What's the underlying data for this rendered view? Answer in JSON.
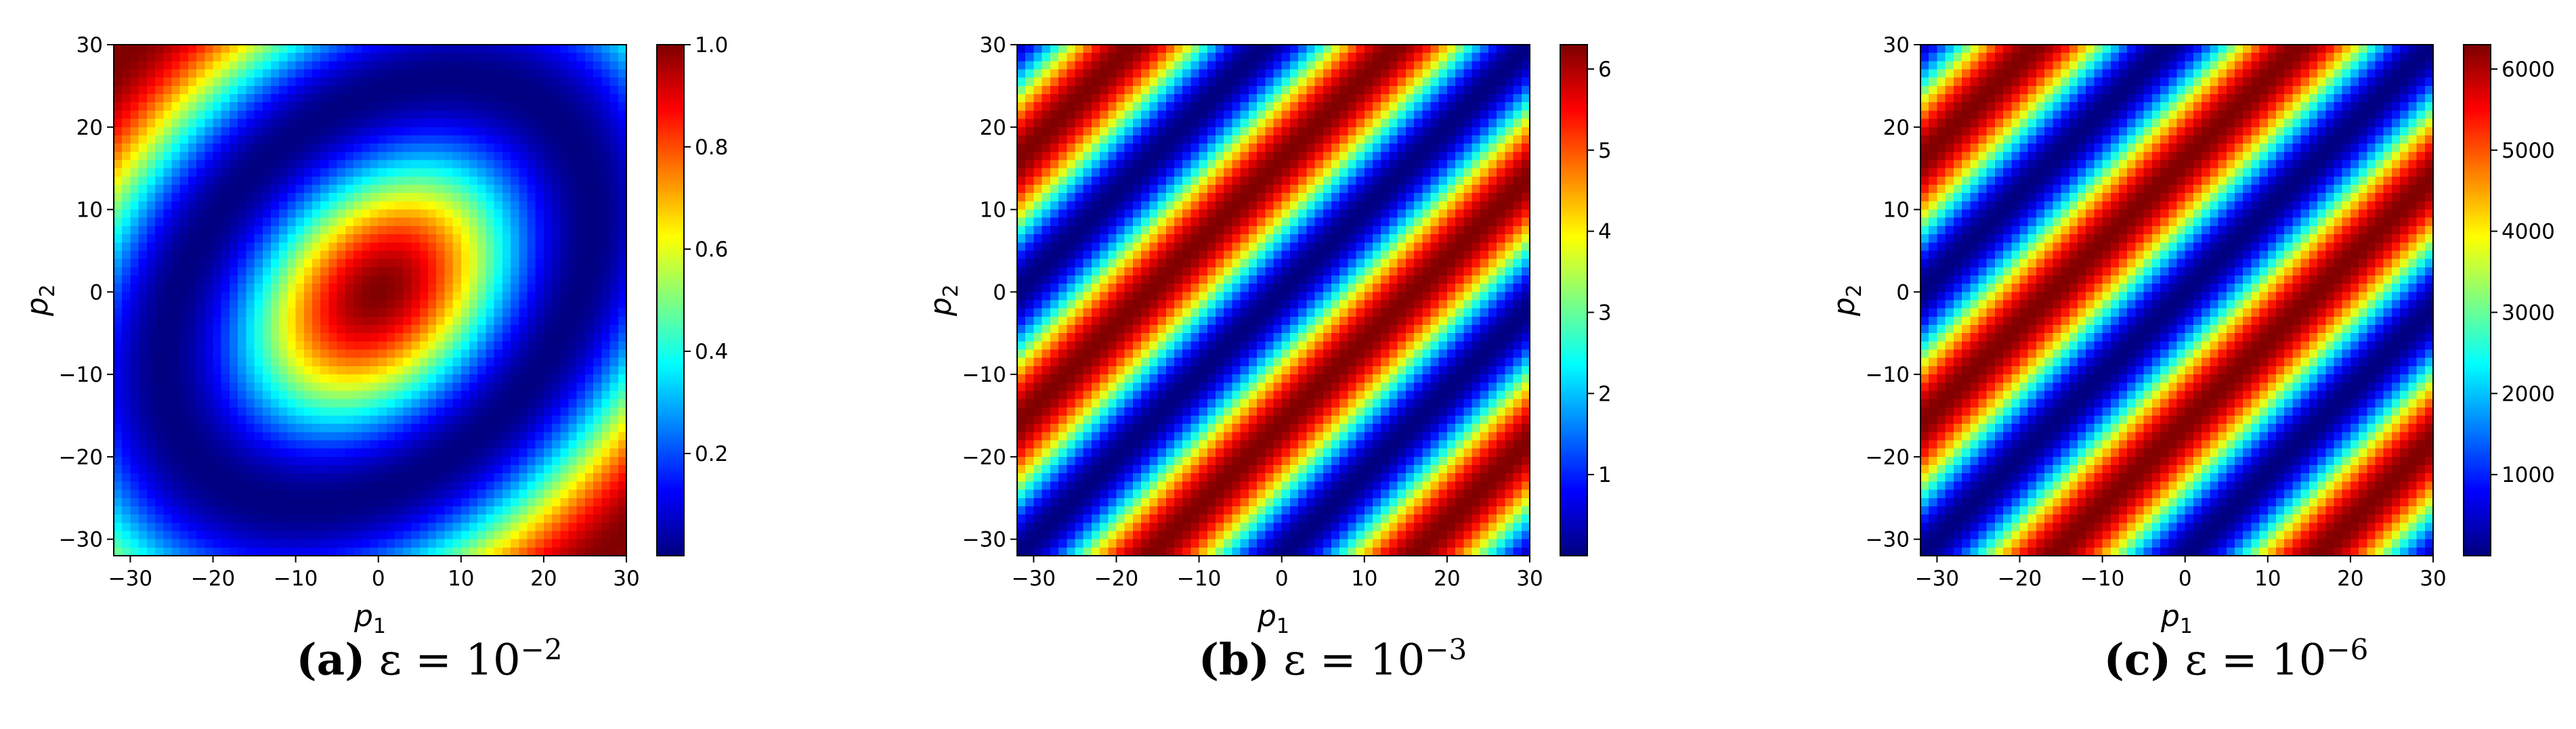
{
  "chart_data": [
    {
      "type": "heatmap",
      "panel_label": "(a)",
      "caption_math": "ε = 10",
      "caption_exponent": "−2",
      "xlabel": "p1",
      "ylabel": "p2",
      "xlim": [
        -32,
        30
      ],
      "ylim": [
        -32,
        30
      ],
      "xticks": [
        "−30",
        "−20",
        "−10",
        "0",
        "10",
        "20",
        "30"
      ],
      "yticks": [
        "30",
        "20",
        "10",
        "0",
        "−10",
        "−20",
        "−30"
      ],
      "colorbar_ticks": [
        "1.0",
        "0.8",
        "0.6",
        "0.4",
        "0.2"
      ],
      "colorbar_tick_values": [
        1.0,
        0.8,
        0.6,
        0.4,
        0.2
      ],
      "colorbar_range": [
        0.0,
        1.0
      ],
      "colormap": "jet",
      "pattern": "single elliptical maximum centered at (0, 0), elongated along p1 = -p2, dark minima bands near (−20, −20) and (20, 20)"
    },
    {
      "type": "heatmap",
      "panel_label": "(b)",
      "caption_math": "ε = 10",
      "caption_exponent": "−3",
      "xlabel": "p1",
      "ylabel": "p2",
      "xlim": [
        -32,
        30
      ],
      "ylim": [
        -32,
        30
      ],
      "xticks": [
        "−30",
        "−20",
        "−10",
        "0",
        "10",
        "20",
        "30"
      ],
      "yticks": [
        "30",
        "20",
        "10",
        "0",
        "−10",
        "−20",
        "−30"
      ],
      "colorbar_ticks": [
        "6",
        "5",
        "4",
        "3",
        "2",
        "1"
      ],
      "colorbar_tick_values": [
        6,
        5,
        4,
        3,
        2,
        1
      ],
      "colorbar_range": [
        0.0,
        6.3
      ],
      "colormap": "jet",
      "pattern": "two circular maxima at (−16, 16) and (16, −16), minima along diagonals"
    },
    {
      "type": "heatmap",
      "panel_label": "(c)",
      "caption_math": "ε = 10",
      "caption_exponent": "−6",
      "xlabel": "p1",
      "ylabel": "p2",
      "xlim": [
        -32,
        30
      ],
      "ylim": [
        -32,
        30
      ],
      "xticks": [
        "−30",
        "−20",
        "−10",
        "0",
        "10",
        "20",
        "30"
      ],
      "yticks": [
        "30",
        "20",
        "10",
        "0",
        "−10",
        "−20",
        "−30"
      ],
      "colorbar_ticks": [
        "6000",
        "5000",
        "4000",
        "3000",
        "2000",
        "1000"
      ],
      "colorbar_tick_values": [
        6000,
        5000,
        4000,
        3000,
        2000,
        1000
      ],
      "colorbar_range": [
        0,
        6300
      ],
      "colormap": "jet",
      "pattern": "two circular maxima at (−16, 16) and (16, −16), minima along diagonals"
    }
  ]
}
